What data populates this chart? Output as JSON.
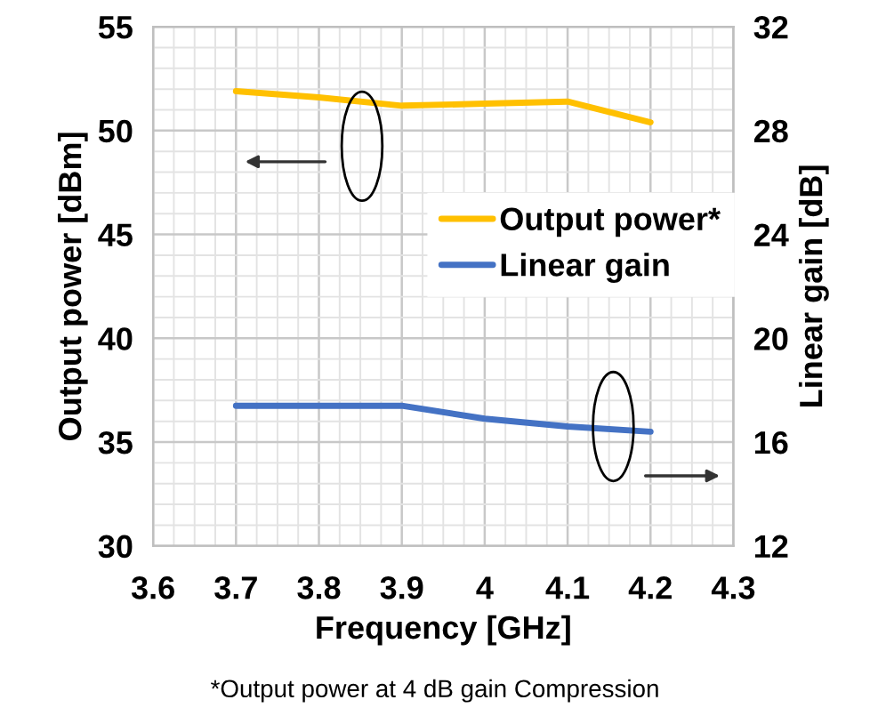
{
  "chart_data": {
    "type": "line",
    "xlabel": "Frequency [GHz]",
    "ylabel": "Output power [dBm]",
    "y2label": "Linear gain [dB]",
    "x": [
      3.7,
      3.8,
      3.9,
      4.0,
      4.1,
      4.2
    ],
    "series": [
      {
        "name": "Output power*",
        "color": "#ffc000",
        "values": [
          51.9,
          51.6,
          51.2,
          51.3,
          51.4,
          50.4
        ]
      },
      {
        "name": "Linear gain",
        "color": "#4472c4",
        "axis": "y2",
        "values": [
          17.4,
          17.4,
          17.4,
          16.9,
          16.6,
          16.4
        ]
      }
    ],
    "xlim": [
      3.6,
      4.3
    ],
    "xticks": [
      {
        "value": 3.6,
        "label": "3.6"
      },
      {
        "value": 3.7,
        "label": "3.7"
      },
      {
        "value": 3.8,
        "label": "3.8"
      },
      {
        "value": 3.9,
        "label": "3.9"
      },
      {
        "value": 4.0,
        "label": "4"
      },
      {
        "value": 4.1,
        "label": "4.1"
      },
      {
        "value": 4.2,
        "label": "4.2"
      },
      {
        "value": 4.3,
        "label": "4.3"
      }
    ],
    "ylim": [
      30,
      55
    ],
    "yticks": [
      30,
      35,
      40,
      45,
      50,
      55
    ],
    "y2lim": [
      12,
      32
    ],
    "y2ticks": [
      12,
      16,
      20,
      24,
      28,
      32
    ],
    "grid": true,
    "legend": "right",
    "marker": "none",
    "line_style": "solid",
    "annotations": [
      "*Output power at 4 dB gain Compression"
    ]
  }
}
